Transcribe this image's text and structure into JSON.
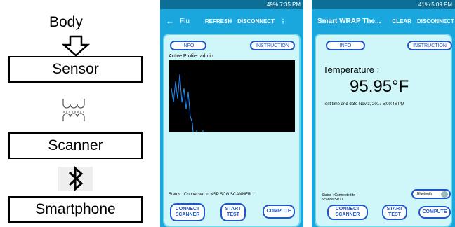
{
  "diagram": {
    "nodes": [
      {
        "label": "Body"
      },
      {
        "label": "Sensor"
      },
      {
        "label": "Scanner"
      },
      {
        "label": "Smartphone"
      }
    ]
  },
  "phone_1": {
    "status_bar": {
      "battery": "49%",
      "time": "7:35 PM"
    },
    "app_bar": {
      "title": "Flu",
      "actions": [
        "REFRESH",
        "DISCONNECT"
      ]
    },
    "buttons_top": [
      "INFO",
      "INSTRUCTION"
    ],
    "profile": "Active Profile:  admin",
    "status": "Status : Connected to NSP SCG SCANNER 1",
    "buttons_bottom": [
      [
        "CONNECT",
        "SCANNER"
      ],
      [
        "START",
        "TEST"
      ],
      [
        "COMPUTE"
      ]
    ]
  },
  "phone_2": {
    "status_bar": {
      "battery": "41%",
      "time": "5:09 PM"
    },
    "app_bar": {
      "title": "Smart WRAP The...",
      "actions": [
        "CLEAR",
        "DISCONNECT"
      ]
    },
    "buttons_top": [
      "INFO",
      "INSTRUCTION"
    ],
    "temperature_label": "Temperature :",
    "temperature": "95.95°F",
    "test_time": "Test time and date-Nov 3, 2017 5:09:46 PM",
    "status": [
      "Status : Connected to",
      "ScannerSP71"
    ],
    "toggle": "Bluetooth",
    "buttons_bottom": [
      [
        "CONNECT",
        "SCANNER"
      ],
      [
        "START",
        "TEST"
      ],
      [
        "COMPUTE"
      ]
    ]
  }
}
